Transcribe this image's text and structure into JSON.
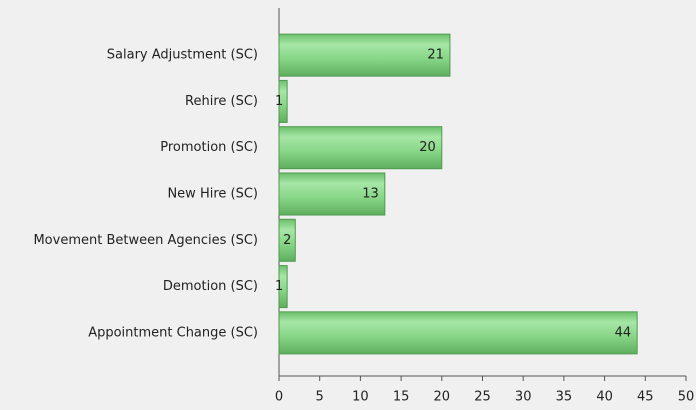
{
  "chart_data": {
    "type": "bar",
    "orientation": "horizontal",
    "categories": [
      "Salary Adjustment (SC)",
      "Rehire (SC)",
      "Promotion (SC)",
      "New Hire (SC)",
      "Movement Between Agencies (SC)",
      "Demotion (SC)",
      "Appointment Change (SC)"
    ],
    "values": [
      21,
      1,
      20,
      13,
      2,
      1,
      44
    ],
    "color": "#7fd37f",
    "xlim": [
      0,
      50
    ],
    "xticks": [
      0,
      5,
      10,
      15,
      20,
      25,
      30,
      35,
      40,
      45,
      50
    ]
  }
}
